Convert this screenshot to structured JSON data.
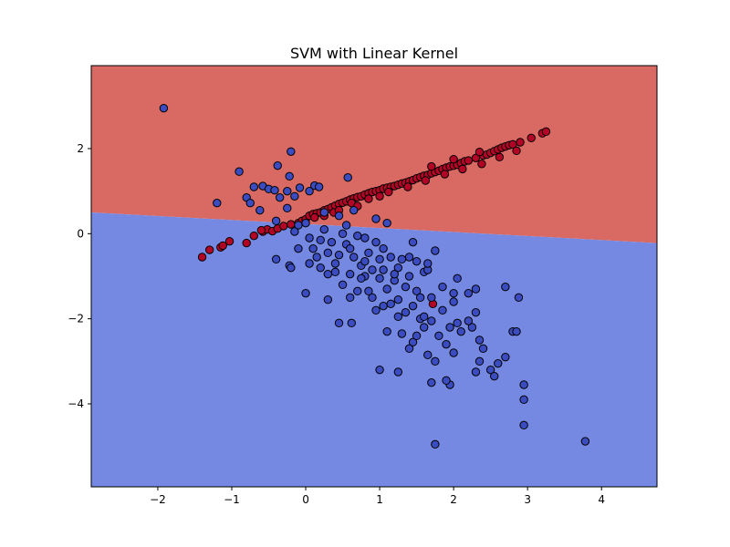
{
  "chart_data": {
    "type": "scatter",
    "title": "SVM with Linear Kernel",
    "xlabel": "",
    "ylabel": "",
    "xlim": [
      -2.9,
      4.75
    ],
    "ylim": [
      -5.95,
      3.95
    ],
    "x_ticks": [
      -2,
      -1,
      0,
      1,
      2,
      3,
      4
    ],
    "y_ticks": [
      -4,
      -2,
      0,
      2
    ],
    "grid": false,
    "decision_boundary": {
      "left": [
        -2.9,
        0.5
      ],
      "right": [
        4.75,
        -0.22
      ]
    },
    "regions": [
      {
        "side": "above",
        "color": "#d96963"
      },
      {
        "side": "below",
        "color": "#7589e2"
      }
    ],
    "series": [
      {
        "color": "#b40426",
        "points": [
          [
            -1.4,
            -0.55
          ],
          [
            -1.3,
            -0.38
          ],
          [
            -1.15,
            -0.32
          ],
          [
            -1.12,
            -0.28
          ],
          [
            -1.03,
            -0.18
          ],
          [
            -0.8,
            -0.22
          ],
          [
            -0.7,
            -0.05
          ],
          [
            -0.58,
            0.05
          ],
          [
            -0.52,
            0.1
          ],
          [
            -0.45,
            0.06
          ],
          [
            -0.38,
            0.12
          ],
          [
            -0.3,
            0.18
          ],
          [
            -0.2,
            0.22
          ],
          [
            -0.1,
            0.25
          ],
          [
            -0.05,
            0.3
          ],
          [
            0.0,
            0.34
          ],
          [
            0.05,
            0.42
          ],
          [
            0.1,
            0.46
          ],
          [
            0.15,
            0.48
          ],
          [
            0.2,
            0.5
          ],
          [
            0.25,
            0.55
          ],
          [
            0.3,
            0.58
          ],
          [
            0.35,
            0.62
          ],
          [
            0.4,
            0.66
          ],
          [
            0.45,
            0.7
          ],
          [
            0.5,
            0.73
          ],
          [
            0.55,
            0.76
          ],
          [
            0.6,
            0.8
          ],
          [
            0.65,
            0.83
          ],
          [
            0.7,
            0.86
          ],
          [
            0.75,
            0.88
          ],
          [
            0.8,
            0.92
          ],
          [
            0.85,
            0.95
          ],
          [
            0.9,
            0.98
          ],
          [
            0.95,
            1.0
          ],
          [
            1.0,
            1.02
          ],
          [
            1.05,
            1.06
          ],
          [
            1.1,
            1.08
          ],
          [
            1.15,
            1.1
          ],
          [
            1.2,
            1.12
          ],
          [
            1.25,
            1.15
          ],
          [
            1.3,
            1.18
          ],
          [
            1.35,
            1.2
          ],
          [
            1.4,
            1.23
          ],
          [
            1.45,
            1.26
          ],
          [
            1.5,
            1.3
          ],
          [
            1.55,
            1.33
          ],
          [
            1.6,
            1.36
          ],
          [
            1.65,
            1.38
          ],
          [
            1.7,
            1.42
          ],
          [
            1.75,
            1.45
          ],
          [
            1.8,
            1.48
          ],
          [
            1.85,
            1.52
          ],
          [
            1.9,
            1.55
          ],
          [
            1.95,
            1.58
          ],
          [
            2.0,
            1.6
          ],
          [
            2.05,
            1.62
          ],
          [
            2.1,
            1.66
          ],
          [
            2.15,
            1.7
          ],
          [
            2.2,
            1.72
          ],
          [
            2.3,
            1.78
          ],
          [
            2.4,
            1.84
          ],
          [
            2.45,
            1.86
          ],
          [
            2.5,
            1.9
          ],
          [
            2.55,
            1.94
          ],
          [
            2.6,
            1.98
          ],
          [
            2.65,
            2.02
          ],
          [
            2.7,
            2.05
          ],
          [
            2.75,
            2.08
          ],
          [
            2.8,
            2.1
          ],
          [
            2.9,
            2.15
          ],
          [
            3.05,
            2.25
          ],
          [
            3.2,
            2.36
          ],
          [
            3.25,
            2.4
          ],
          [
            0.12,
            0.38
          ],
          [
            0.38,
            0.5
          ],
          [
            0.62,
            0.72
          ],
          [
            0.85,
            0.82
          ],
          [
            1.12,
            0.98
          ],
          [
            1.38,
            1.1
          ],
          [
            1.62,
            1.25
          ],
          [
            1.88,
            1.4
          ],
          [
            2.12,
            1.52
          ],
          [
            2.38,
            1.64
          ],
          [
            2.62,
            1.8
          ],
          [
            2.85,
            1.95
          ],
          [
            1.7,
            1.58
          ],
          [
            2.0,
            1.75
          ],
          [
            2.35,
            1.92
          ],
          [
            1.0,
            0.88
          ],
          [
            0.7,
            0.65
          ],
          [
            0.45,
            0.55
          ],
          [
            1.72,
            -1.65
          ],
          [
            -0.6,
            0.08
          ],
          [
            0.25,
            0.42
          ]
        ]
      },
      {
        "color": "#3b4cc0",
        "points": [
          [
            -1.92,
            2.95
          ],
          [
            -0.2,
            1.93
          ],
          [
            -0.38,
            1.6
          ],
          [
            -0.9,
            1.46
          ],
          [
            -0.22,
            1.35
          ],
          [
            0.57,
            1.32
          ],
          [
            -0.7,
            1.1
          ],
          [
            -0.58,
            1.12
          ],
          [
            -0.5,
            1.05
          ],
          [
            -0.42,
            1.02
          ],
          [
            -0.08,
            1.08
          ],
          [
            0.05,
            1.0
          ],
          [
            0.12,
            1.13
          ],
          [
            0.18,
            1.1
          ],
          [
            -0.25,
            1.0
          ],
          [
            -0.15,
            0.88
          ],
          [
            -0.8,
            0.85
          ],
          [
            -0.75,
            0.72
          ],
          [
            -1.2,
            0.72
          ],
          [
            -0.35,
            0.85
          ],
          [
            -0.62,
            0.55
          ],
          [
            -0.25,
            0.6
          ],
          [
            0.65,
            0.55
          ],
          [
            0.25,
            0.5
          ],
          [
            0.45,
            0.42
          ],
          [
            0.95,
            0.35
          ],
          [
            1.1,
            0.25
          ],
          [
            0.55,
            0.2
          ],
          [
            -0.4,
            0.3
          ],
          [
            -0.1,
            0.2
          ],
          [
            0.0,
            0.25
          ],
          [
            0.25,
            0.1
          ],
          [
            0.5,
            0.0
          ],
          [
            0.7,
            -0.05
          ],
          [
            -0.15,
            0.05
          ],
          [
            0.05,
            -0.1
          ],
          [
            0.2,
            -0.15
          ],
          [
            0.35,
            -0.2
          ],
          [
            0.55,
            -0.25
          ],
          [
            0.8,
            -0.1
          ],
          [
            0.95,
            -0.2
          ],
          [
            -0.1,
            -0.35
          ],
          [
            0.1,
            -0.35
          ],
          [
            0.3,
            -0.45
          ],
          [
            0.45,
            -0.5
          ],
          [
            0.65,
            -0.55
          ],
          [
            0.85,
            -0.45
          ],
          [
            1.0,
            -0.6
          ],
          [
            1.15,
            -0.55
          ],
          [
            1.3,
            -0.6
          ],
          [
            -0.4,
            -0.6
          ],
          [
            -0.22,
            -0.75
          ],
          [
            0.05,
            -0.7
          ],
          [
            0.2,
            -0.8
          ],
          [
            0.4,
            -0.9
          ],
          [
            0.6,
            -0.95
          ],
          [
            0.8,
            -1.0
          ],
          [
            1.0,
            -1.05
          ],
          [
            1.2,
            -1.1
          ],
          [
            1.4,
            -1.0
          ],
          [
            1.6,
            -0.9
          ],
          [
            1.75,
            -0.4
          ],
          [
            1.45,
            -0.2
          ],
          [
            1.5,
            -0.65
          ],
          [
            1.65,
            -0.85
          ],
          [
            0.0,
            -1.4
          ],
          [
            0.3,
            -1.55
          ],
          [
            0.5,
            -1.2
          ],
          [
            0.7,
            -1.35
          ],
          [
            0.9,
            -1.5
          ],
          [
            1.05,
            -1.7
          ],
          [
            1.25,
            -1.55
          ],
          [
            1.35,
            -1.85
          ],
          [
            1.5,
            -1.35
          ],
          [
            1.7,
            -1.5
          ],
          [
            1.85,
            -1.8
          ],
          [
            2.05,
            -1.05
          ],
          [
            2.2,
            -1.4
          ],
          [
            2.3,
            -1.3
          ],
          [
            2.3,
            -1.85
          ],
          [
            2.0,
            -1.6
          ],
          [
            1.95,
            -2.2
          ],
          [
            2.05,
            -2.1
          ],
          [
            2.25,
            -2.2
          ],
          [
            1.6,
            -2.2
          ],
          [
            1.45,
            -2.55
          ],
          [
            1.3,
            -2.35
          ],
          [
            1.1,
            -2.3
          ],
          [
            0.45,
            -2.1
          ],
          [
            0.62,
            -2.1
          ],
          [
            1.55,
            -2.0
          ],
          [
            1.8,
            -2.4
          ],
          [
            2.1,
            -2.3
          ],
          [
            2.35,
            -2.5
          ],
          [
            2.4,
            -2.7
          ],
          [
            1.4,
            -2.7
          ],
          [
            1.65,
            -2.85
          ],
          [
            1.75,
            -3.0
          ],
          [
            2.0,
            -2.8
          ],
          [
            2.35,
            -3.0
          ],
          [
            2.6,
            -3.05
          ],
          [
            2.7,
            -2.9
          ],
          [
            2.5,
            -3.2
          ],
          [
            2.55,
            -3.35
          ],
          [
            2.3,
            -3.25
          ],
          [
            1.25,
            -3.25
          ],
          [
            1.0,
            -3.2
          ],
          [
            1.7,
            -3.5
          ],
          [
            1.95,
            -3.55
          ],
          [
            1.9,
            -3.45
          ],
          [
            2.8,
            -2.3
          ],
          [
            2.85,
            -2.3
          ],
          [
            2.7,
            -1.25
          ],
          [
            2.88,
            -1.5
          ],
          [
            2.95,
            -3.55
          ],
          [
            2.95,
            -3.9
          ],
          [
            2.95,
            -4.5
          ],
          [
            1.75,
            -4.95
          ],
          [
            3.78,
            -4.88
          ],
          [
            0.85,
            -1.35
          ],
          [
            0.6,
            -1.5
          ],
          [
            0.3,
            -0.95
          ],
          [
            1.05,
            -0.85
          ],
          [
            1.2,
            -0.95
          ],
          [
            1.35,
            -1.25
          ],
          [
            1.55,
            -1.5
          ],
          [
            0.75,
            -0.75
          ],
          [
            0.9,
            -0.85
          ],
          [
            1.1,
            -1.3
          ],
          [
            1.25,
            -1.95
          ],
          [
            1.45,
            -1.7
          ],
          [
            1.6,
            -1.95
          ],
          [
            0.95,
            -1.8
          ],
          [
            1.15,
            -1.65
          ],
          [
            -0.2,
            -0.8
          ],
          [
            0.15,
            -0.55
          ],
          [
            0.4,
            -0.7
          ],
          [
            0.6,
            -0.35
          ],
          [
            0.8,
            -0.65
          ],
          [
            1.05,
            -0.35
          ],
          [
            1.25,
            -0.8
          ],
          [
            1.4,
            -0.55
          ],
          [
            1.65,
            -0.7
          ],
          [
            1.85,
            -1.25
          ],
          [
            2.0,
            -1.4
          ],
          [
            2.2,
            -2.05
          ],
          [
            1.7,
            -2.05
          ],
          [
            1.9,
            -2.6
          ],
          [
            1.5,
            -2.4
          ],
          [
            0.75,
            -1.05
          ]
        ]
      }
    ]
  }
}
